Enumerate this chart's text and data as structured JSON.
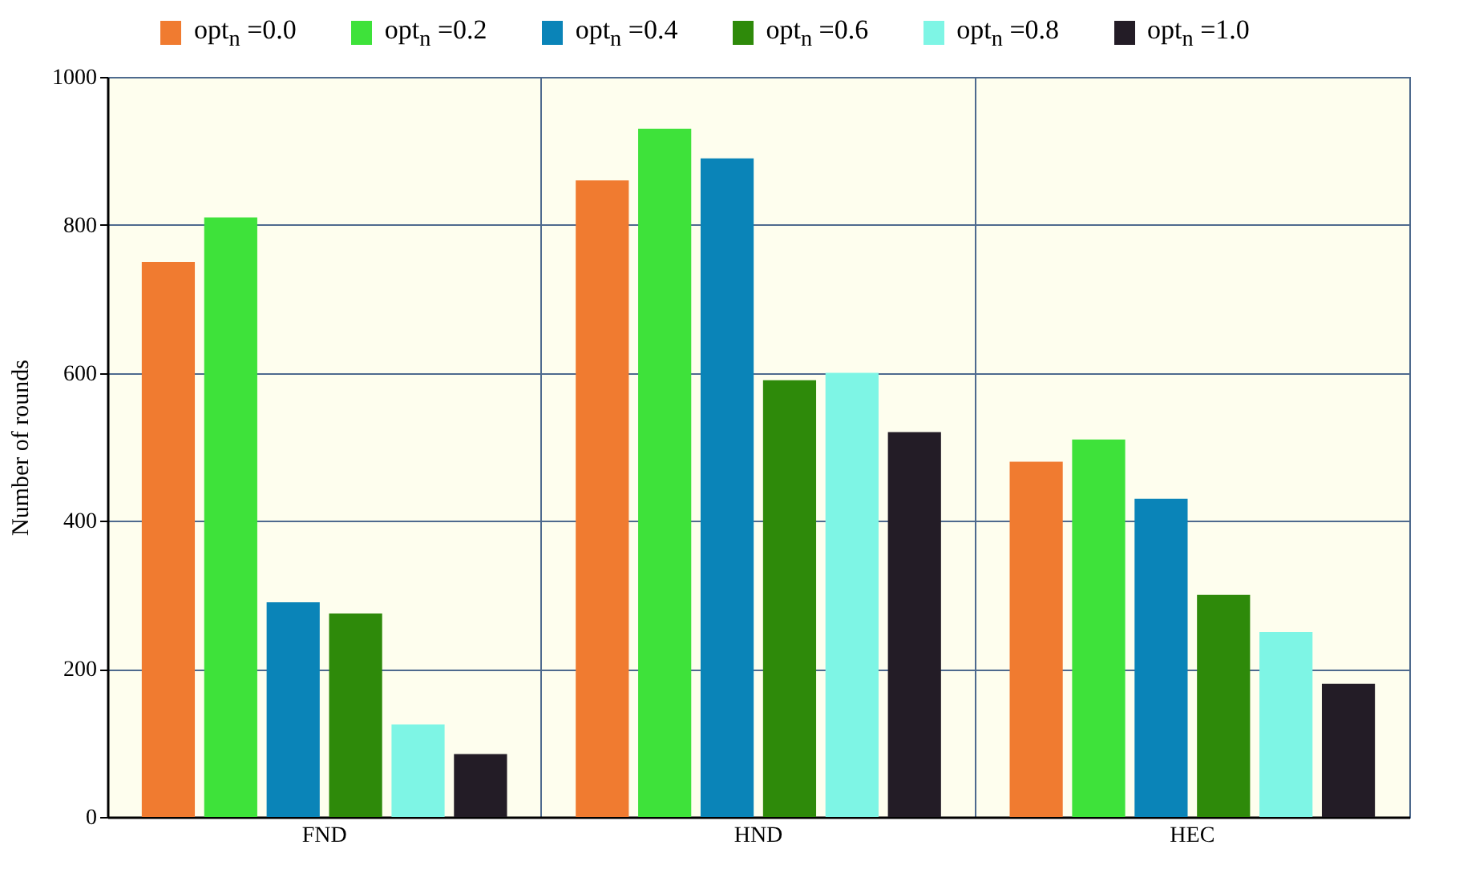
{
  "chart_data": {
    "type": "bar",
    "ylabel": "Number of rounds",
    "categories": [
      "FND",
      "HND",
      "HEC"
    ],
    "series": [
      {
        "name": "opt$_{n}$ =0.0",
        "color": "#f07b30",
        "values": [
          750,
          860,
          480
        ]
      },
      {
        "name": "opt$_{n}$ =0.2",
        "color": "#3ee23a",
        "values": [
          810,
          930,
          510
        ]
      },
      {
        "name": "opt$_{n}$ =0.4",
        "color": "#0a84b8",
        "values": [
          290,
          890,
          430
        ]
      },
      {
        "name": "opt$_{n}$ =0.6",
        "color": "#2e8a0a",
        "values": [
          275,
          590,
          300
        ]
      },
      {
        "name": "opt$_{n}$ =0.8",
        "color": "#7ef5e5",
        "values": [
          125,
          600,
          250
        ]
      },
      {
        "name": "opt$_{n}$ =1.0",
        "color": "#231c26",
        "values": [
          85,
          520,
          180
        ]
      }
    ],
    "ylim": [
      0,
      1000
    ],
    "yticks": [
      0,
      200,
      400,
      600,
      800,
      1000
    ],
    "grid": true,
    "legend": "top"
  }
}
